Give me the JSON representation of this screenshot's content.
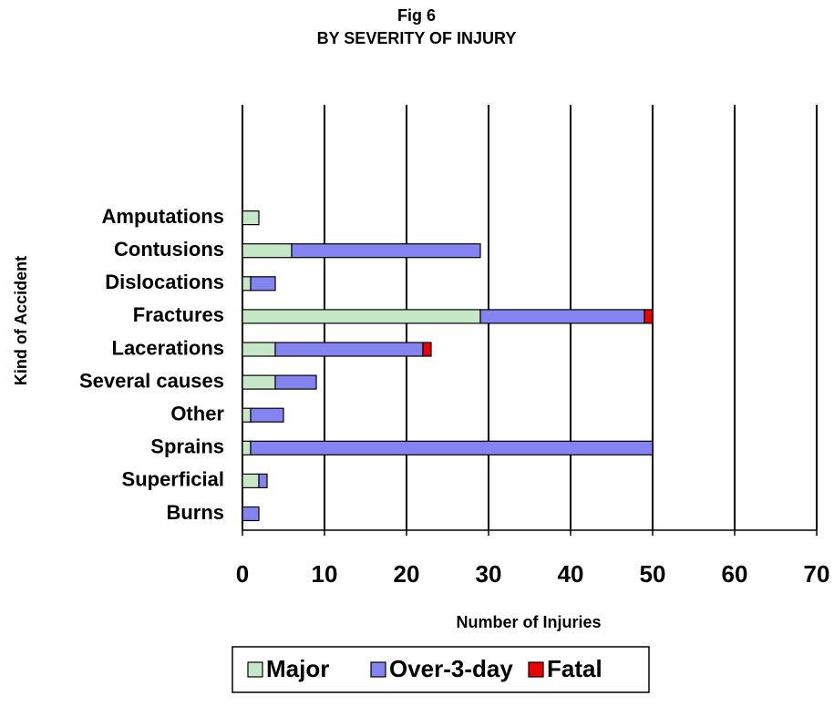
{
  "chart_data": {
    "type": "stacked_barh",
    "title": "Fig 6",
    "subtitle": "BY SEVERITY OF INJURY",
    "xlabel": "Number of Injuries",
    "ylabel": "Kind of Accident",
    "categories": [
      "Amputations",
      "Contusions",
      "Dislocations",
      "Fractures",
      "Lacerations",
      "Several causes",
      "Other",
      "Sprains",
      "Superficial",
      "Burns"
    ],
    "series": [
      {
        "name": "Major",
        "color": "#c6e8c6",
        "values": [
          2,
          6,
          1,
          29,
          4,
          4,
          1,
          1,
          2,
          0
        ]
      },
      {
        "name": "Over-3-day",
        "color": "#8484f0",
        "values": [
          0,
          23,
          3,
          20,
          18,
          5,
          4,
          49,
          1,
          2
        ]
      },
      {
        "name": "Fatal",
        "color": "#ee0000",
        "values": [
          0,
          0,
          0,
          1,
          1,
          0,
          0,
          0,
          0,
          0
        ]
      }
    ],
    "xlim": [
      0,
      70
    ],
    "xticks": [
      0,
      10,
      20,
      30,
      40,
      50,
      60,
      70
    ],
    "grid": true,
    "legend": "bottom"
  }
}
